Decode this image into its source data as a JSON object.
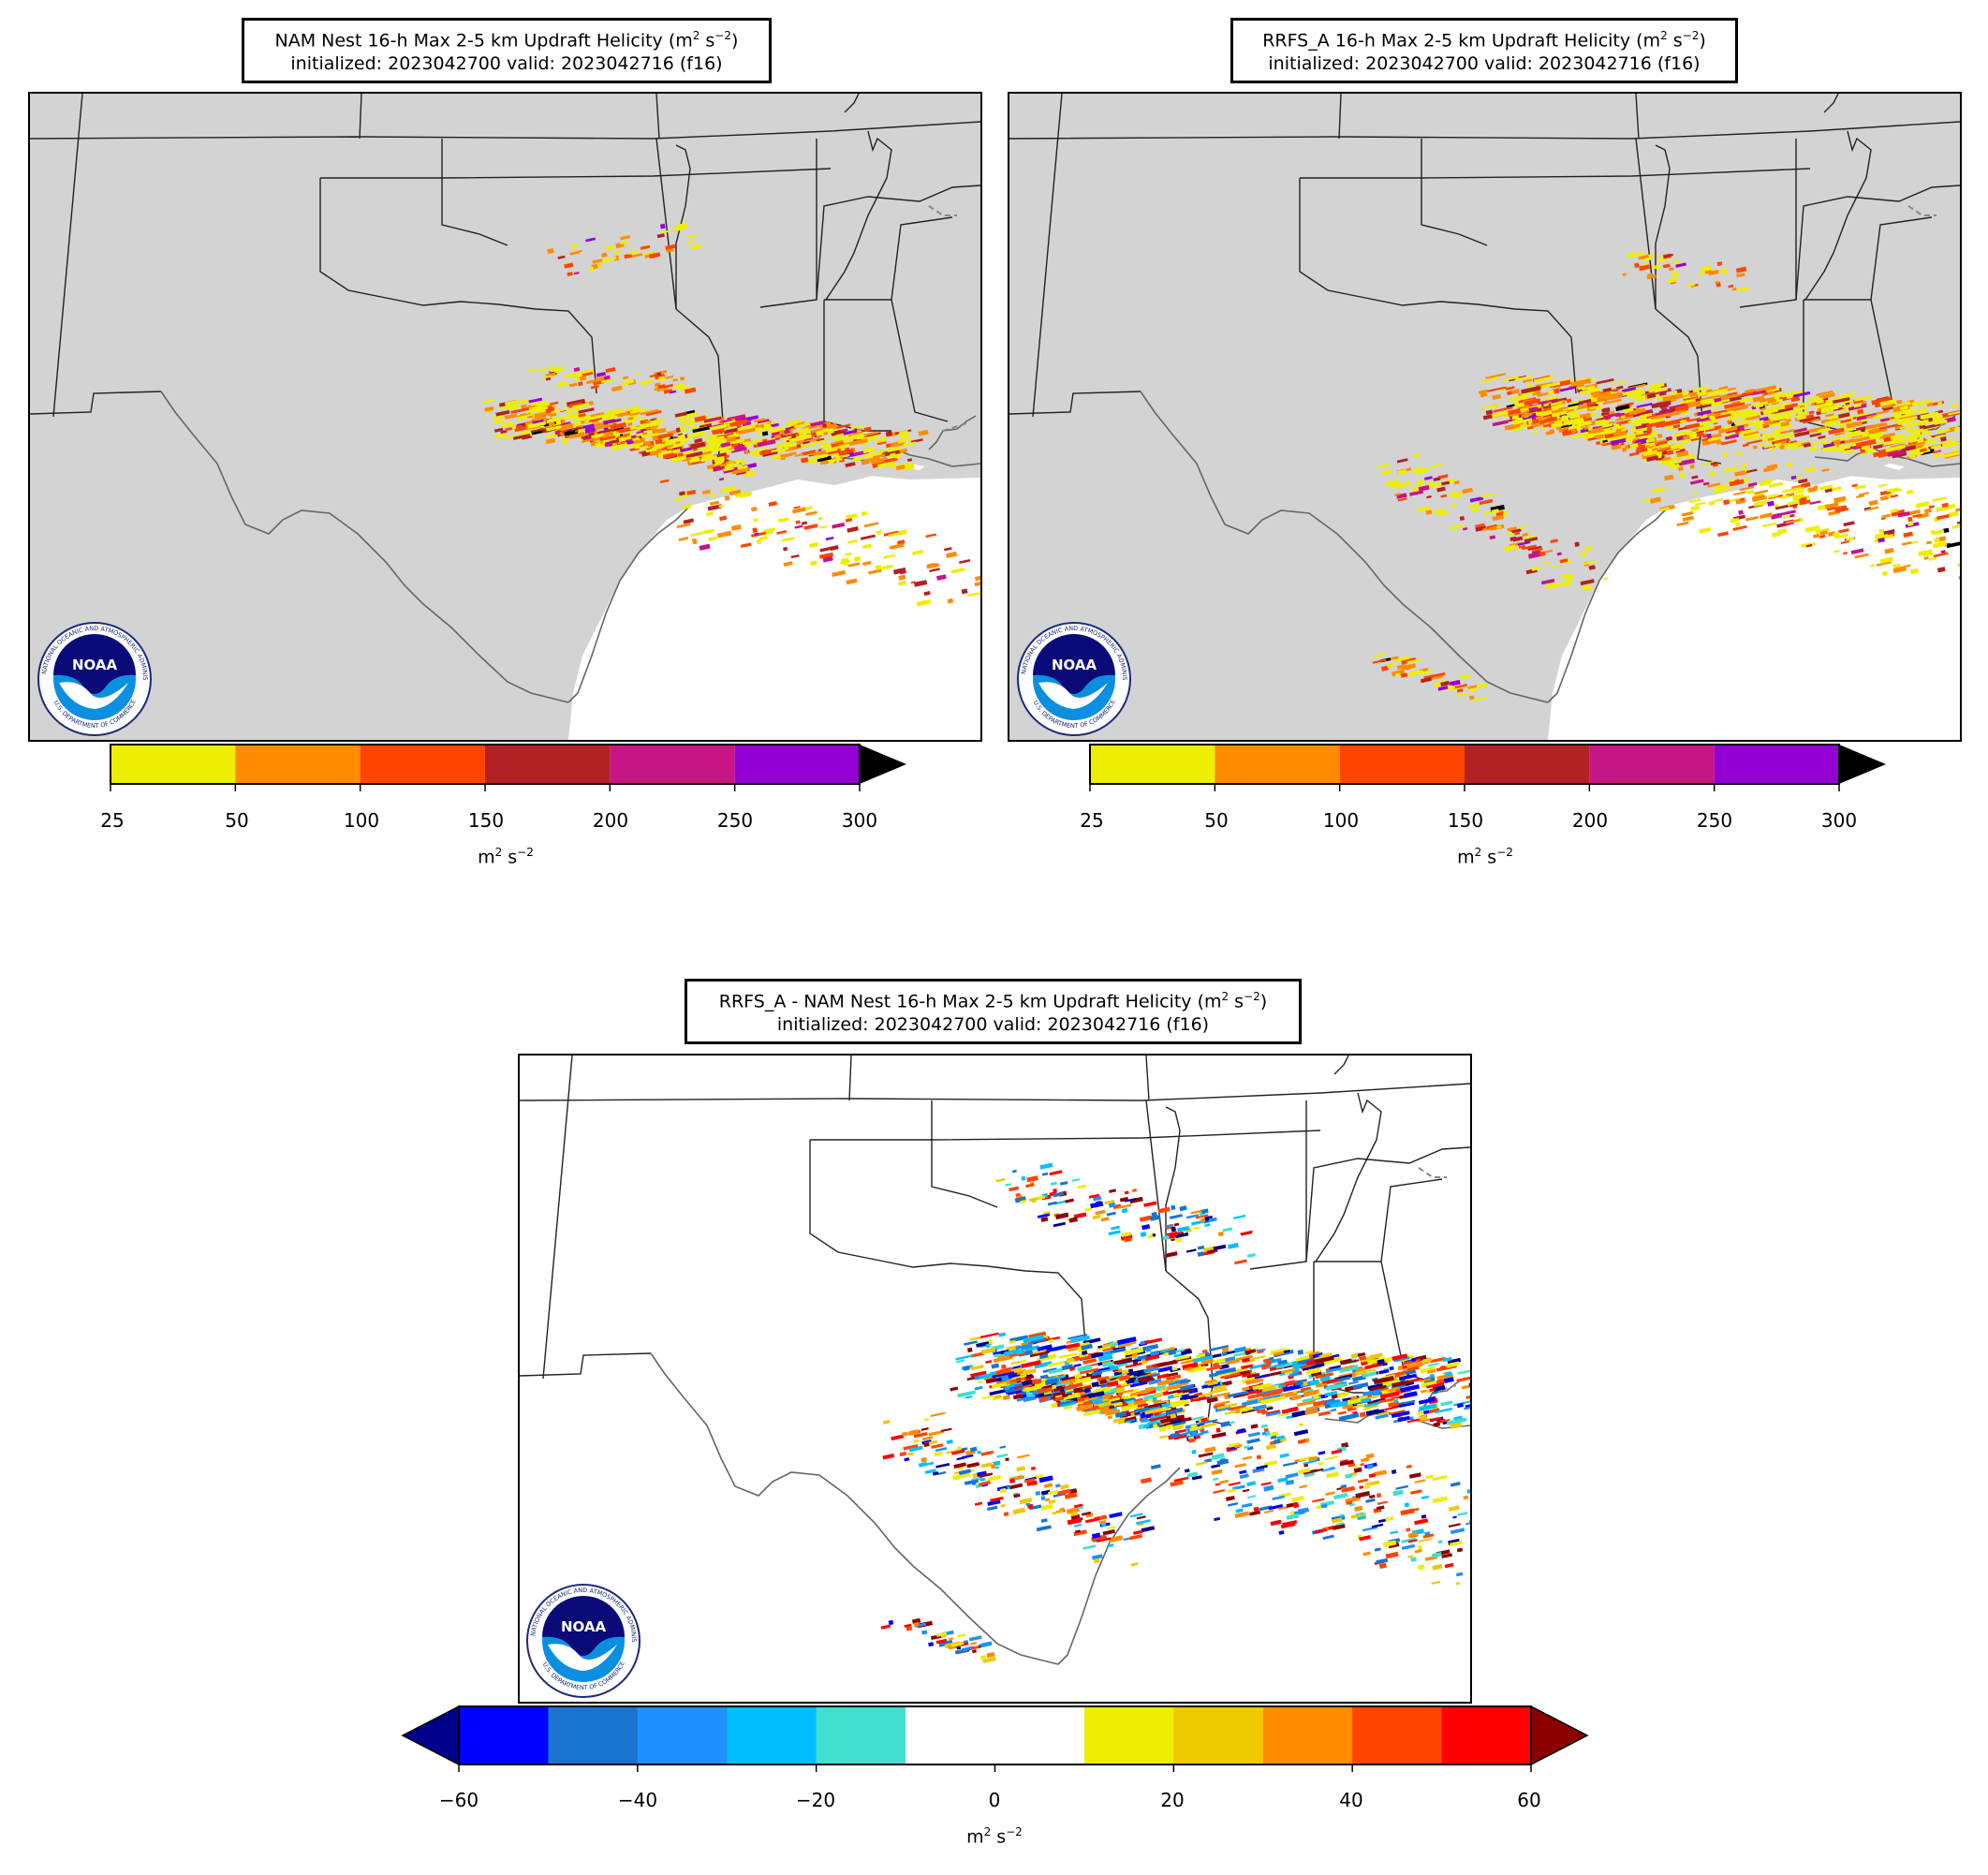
{
  "panels": {
    "nam": {
      "title_line1": "NAM Nest 16-h Max 2-5 km Updraft Helicity (m",
      "title_sup1": "2",
      "title_mid": " s",
      "title_sup2": "−2",
      "title_end": ")",
      "title_line2": "initialized: 2023042700 valid: 2023042716 (f16)"
    },
    "rrfs": {
      "title_line1": "RRFS_A 16-h Max 2-5 km Updraft Helicity (m",
      "title_sup1": "2",
      "title_mid": " s",
      "title_sup2": "−2",
      "title_end": ")",
      "title_line2": "initialized: 2023042700 valid: 2023042716 (f16)"
    },
    "diff": {
      "title_line1": "RRFS_A - NAM Nest 16-h Max 2-5 km Updraft Helicity (m",
      "title_sup1": "2",
      "title_mid": " s",
      "title_sup2": "−2",
      "title_end": ")",
      "title_line2": "initialized: 2023042700 valid: 2023042716 (f16)"
    }
  },
  "colorbars": {
    "uh": {
      "ticks": [
        "25",
        "50",
        "100",
        "150",
        "200",
        "250",
        "300"
      ],
      "colors": [
        "#eeee00",
        "#ff8c00",
        "#ff4500",
        "#b22222",
        "#c71585",
        "#9400d3"
      ],
      "extend_color": "#000000",
      "label_base": "m",
      "label_sup1": "2",
      "label_mid": " s",
      "label_sup2": "−2"
    },
    "diff": {
      "ticks": [
        "−60",
        "−40",
        "−20",
        "0",
        "20",
        "40",
        "60"
      ],
      "colors": [
        "#0000ff",
        "#1874cd",
        "#1e90ff",
        "#00bfff",
        "#40e0d0",
        "#ffffff",
        "#ffffff",
        "#eeee00",
        "#eec900",
        "#ff8c00",
        "#ff4500",
        "#ff0000"
      ],
      "extend_low": "#00008b",
      "extend_high": "#8b0000",
      "label_base": "m",
      "label_sup1": "2",
      "label_mid": " s",
      "label_sup2": "−2"
    }
  },
  "logo": {
    "center_text": "NOAA",
    "ring_top": "NATIONAL OCEANIC AND ATMOSPHERIC ADMINISTRATION",
    "ring_bottom": "U.S. DEPARTMENT OF COMMERCE"
  },
  "colors": {
    "land": "#d3d3d3",
    "water": "#ffffff",
    "border": "#222222",
    "coast": "#666666"
  }
}
